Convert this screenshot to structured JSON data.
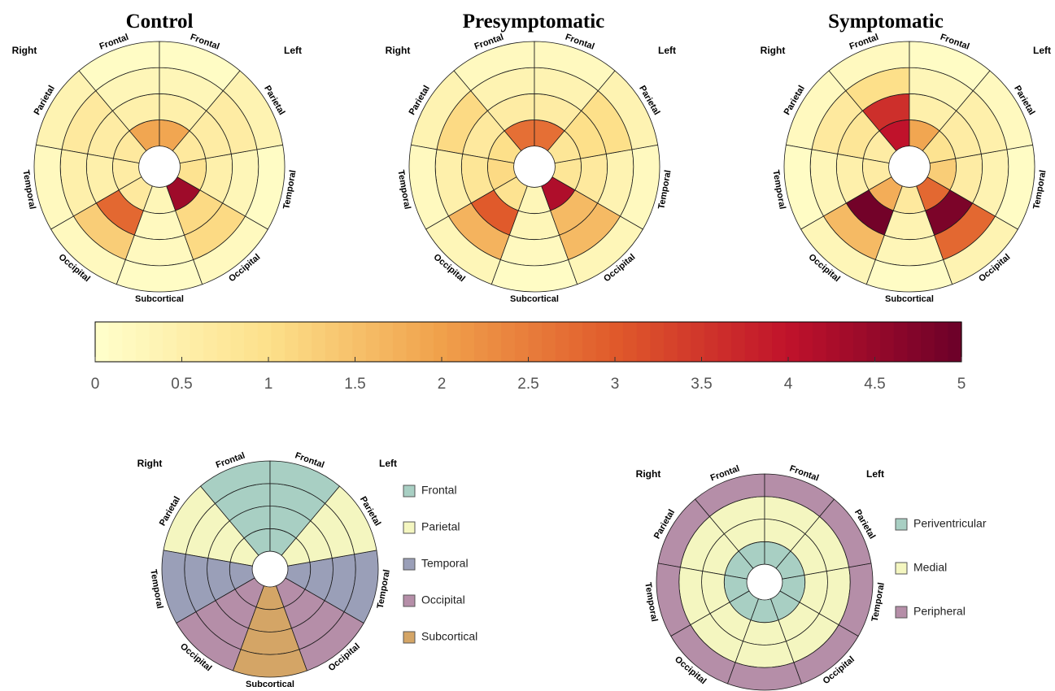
{
  "chart_data": [
    {
      "type": "heatmap",
      "subtype": "polar-bullseye",
      "title": "Control",
      "side_labels": {
        "left": "Right",
        "right": "Left"
      },
      "sector_labels": [
        "Frontal",
        "Frontal",
        "Parietal",
        "Temporal",
        "Occipital",
        "Subcortical",
        "Occipital",
        "Temporal",
        "Parietal"
      ],
      "rings": [
        "ring-1-inner",
        "ring-2",
        "ring-3",
        "ring-4-outer"
      ],
      "values": [
        [
          1.9,
          0.5,
          0.3,
          0.1
        ],
        [
          1.9,
          0.5,
          0.3,
          0.1
        ],
        [
          0.7,
          0.6,
          0.7,
          0.4
        ],
        [
          0.6,
          0.5,
          0.5,
          0.2
        ],
        [
          0.7,
          2.8,
          1.3,
          0.2
        ],
        [
          0.3,
          0.2,
          0.2,
          0.1
        ],
        [
          4.4,
          1.1,
          1.1,
          0.2
        ],
        [
          0.9,
          0.5,
          0.3,
          0.1
        ],
        [
          0.7,
          0.6,
          0.6,
          0.4
        ]
      ]
    },
    {
      "type": "heatmap",
      "subtype": "polar-bullseye",
      "title": "Presymptomatic",
      "side_labels": {
        "left": "Right",
        "right": "Left"
      },
      "sector_labels": [
        "Frontal",
        "Frontal",
        "Parietal",
        "Temporal",
        "Occipital",
        "Subcortical",
        "Occipital",
        "Temporal",
        "Parietal"
      ],
      "rings": [
        "ring-1-inner",
        "ring-2",
        "ring-3",
        "ring-4-outer"
      ],
      "values": [
        [
          2.7,
          0.6,
          0.4,
          0.2
        ],
        [
          2.7,
          0.6,
          0.4,
          0.2
        ],
        [
          1.0,
          0.7,
          1.1,
          0.4
        ],
        [
          1.1,
          0.8,
          0.5,
          0.2
        ],
        [
          0.9,
          3.0,
          1.7,
          0.3
        ],
        [
          0.3,
          0.3,
          0.2,
          0.1
        ],
        [
          4.2,
          1.6,
          1.6,
          0.3
        ],
        [
          0.8,
          0.7,
          0.4,
          0.2
        ],
        [
          0.8,
          1.0,
          1.0,
          0.4
        ]
      ]
    },
    {
      "type": "heatmap",
      "subtype": "polar-bullseye",
      "title": "Symptomatic",
      "side_labels": {
        "left": "Right",
        "right": "Left"
      },
      "sector_labels": [
        "Frontal",
        "Frontal",
        "Parietal",
        "Temporal",
        "Occipital",
        "Subcortical",
        "Occipital",
        "Temporal",
        "Parietal"
      ],
      "rings": [
        "ring-1-inner",
        "ring-2",
        "ring-3",
        "ring-4-outer"
      ],
      "values": [
        [
          4.0,
          3.6,
          1.0,
          0.2
        ],
        [
          1.9,
          0.5,
          0.3,
          0.1
        ],
        [
          0.6,
          0.8,
          0.7,
          0.2
        ],
        [
          0.6,
          0.5,
          0.3,
          0.1
        ],
        [
          1.8,
          4.9,
          1.6,
          0.3
        ],
        [
          0.7,
          0.4,
          0.3,
          0.1
        ],
        [
          2.8,
          4.8,
          2.8,
          0.4
        ],
        [
          1.3,
          0.6,
          0.4,
          0.1
        ],
        [
          0.9,
          0.6,
          0.5,
          0.2
        ]
      ]
    }
  ],
  "colorbar": {
    "min": 0,
    "max": 5,
    "ticks": [
      "0",
      "0.5",
      "1",
      "1.5",
      "2",
      "2.5",
      "3",
      "3.5",
      "4",
      "4.5",
      "5"
    ],
    "colors": [
      "#ffffcc",
      "#fde08a",
      "#f0a04b",
      "#e05a2b",
      "#c0122b",
      "#6b0029"
    ]
  },
  "lobe_map": {
    "side_labels": {
      "left": "Right",
      "right": "Left"
    },
    "sector_labels": [
      "Frontal",
      "Frontal",
      "Parietal",
      "Temporal",
      "Occipital",
      "Subcortical",
      "Occipital",
      "Temporal",
      "Parietal"
    ],
    "sector_lobe": [
      0,
      0,
      1,
      2,
      3,
      4,
      3,
      2,
      1
    ],
    "legend": [
      {
        "label": "Frontal",
        "color": "#a8cfc3"
      },
      {
        "label": "Parietal",
        "color": "#f4f6c0"
      },
      {
        "label": "Temporal",
        "color": "#9a9fb8"
      },
      {
        "label": "Occipital",
        "color": "#b58ea8"
      },
      {
        "label": "Subcortical",
        "color": "#d4a566"
      }
    ]
  },
  "depth_map": {
    "side_labels": {
      "left": "Right",
      "right": "Left"
    },
    "sector_labels": [
      "Frontal",
      "Frontal",
      "Parietal",
      "Temporal",
      "Occipital",
      "Subcortical",
      "Occipital",
      "Temporal",
      "Parietal"
    ],
    "ring_zone": [
      0,
      1,
      1,
      2
    ],
    "legend": [
      {
        "label": "Periventricular",
        "color": "#a8cfc3"
      },
      {
        "label": "Medial",
        "color": "#f4f6c0"
      },
      {
        "label": "Peripheral",
        "color": "#b58ea8"
      }
    ]
  }
}
